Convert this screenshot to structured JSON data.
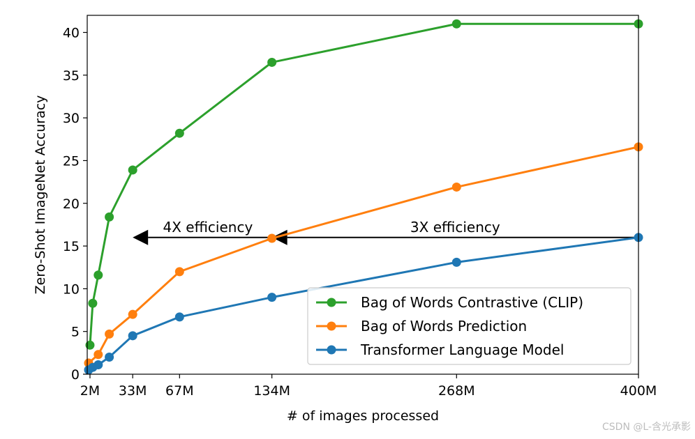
{
  "chart_data": {
    "type": "line",
    "xlabel": "# of images processed",
    "ylabel": "Zero-Shot ImageNet Accuracy",
    "xlim": [
      0,
      400
    ],
    "ylim": [
      0,
      42
    ],
    "x_ticks": [
      {
        "value": 2,
        "label": "2M"
      },
      {
        "value": 33,
        "label": "33M"
      },
      {
        "value": 67,
        "label": "67M"
      },
      {
        "value": 134,
        "label": "134M"
      },
      {
        "value": 268,
        "label": "268M"
      },
      {
        "value": 400,
        "label": "400M"
      }
    ],
    "y_ticks": [
      0,
      5,
      10,
      15,
      20,
      25,
      30,
      35,
      40
    ],
    "legend_position": "lower-right",
    "series": [
      {
        "name": "Bag of Words Contrastive (CLIP)",
        "color": "#2ca02c",
        "x": [
          2,
          4,
          8,
          16,
          33,
          67,
          134,
          268,
          400
        ],
        "y": [
          3.4,
          8.3,
          11.6,
          18.4,
          23.9,
          28.2,
          36.5,
          41.0,
          41.0
        ]
      },
      {
        "name": "Bag of Words Prediction",
        "color": "#ff7f0e",
        "x": [
          1,
          8,
          16,
          33,
          67,
          134,
          268,
          400
        ],
        "y": [
          1.3,
          2.3,
          4.7,
          7.0,
          12.0,
          15.9,
          21.9,
          26.6
        ]
      },
      {
        "name": "Transformer Language Model",
        "color": "#1f77b4",
        "x": [
          1,
          4,
          8,
          16,
          33,
          67,
          134,
          268,
          400
        ],
        "y": [
          0.5,
          0.8,
          1.1,
          2.0,
          4.5,
          6.7,
          9.0,
          13.1,
          16.0
        ]
      }
    ],
    "annotations": [
      {
        "text": "4X efficiency",
        "from_x": 134,
        "to_x": 33,
        "y": 16.0
      },
      {
        "text": "3X efficiency",
        "from_x": 400,
        "to_x": 134,
        "y": 16.0
      }
    ]
  },
  "watermark": "CSDN @L-含光承影"
}
